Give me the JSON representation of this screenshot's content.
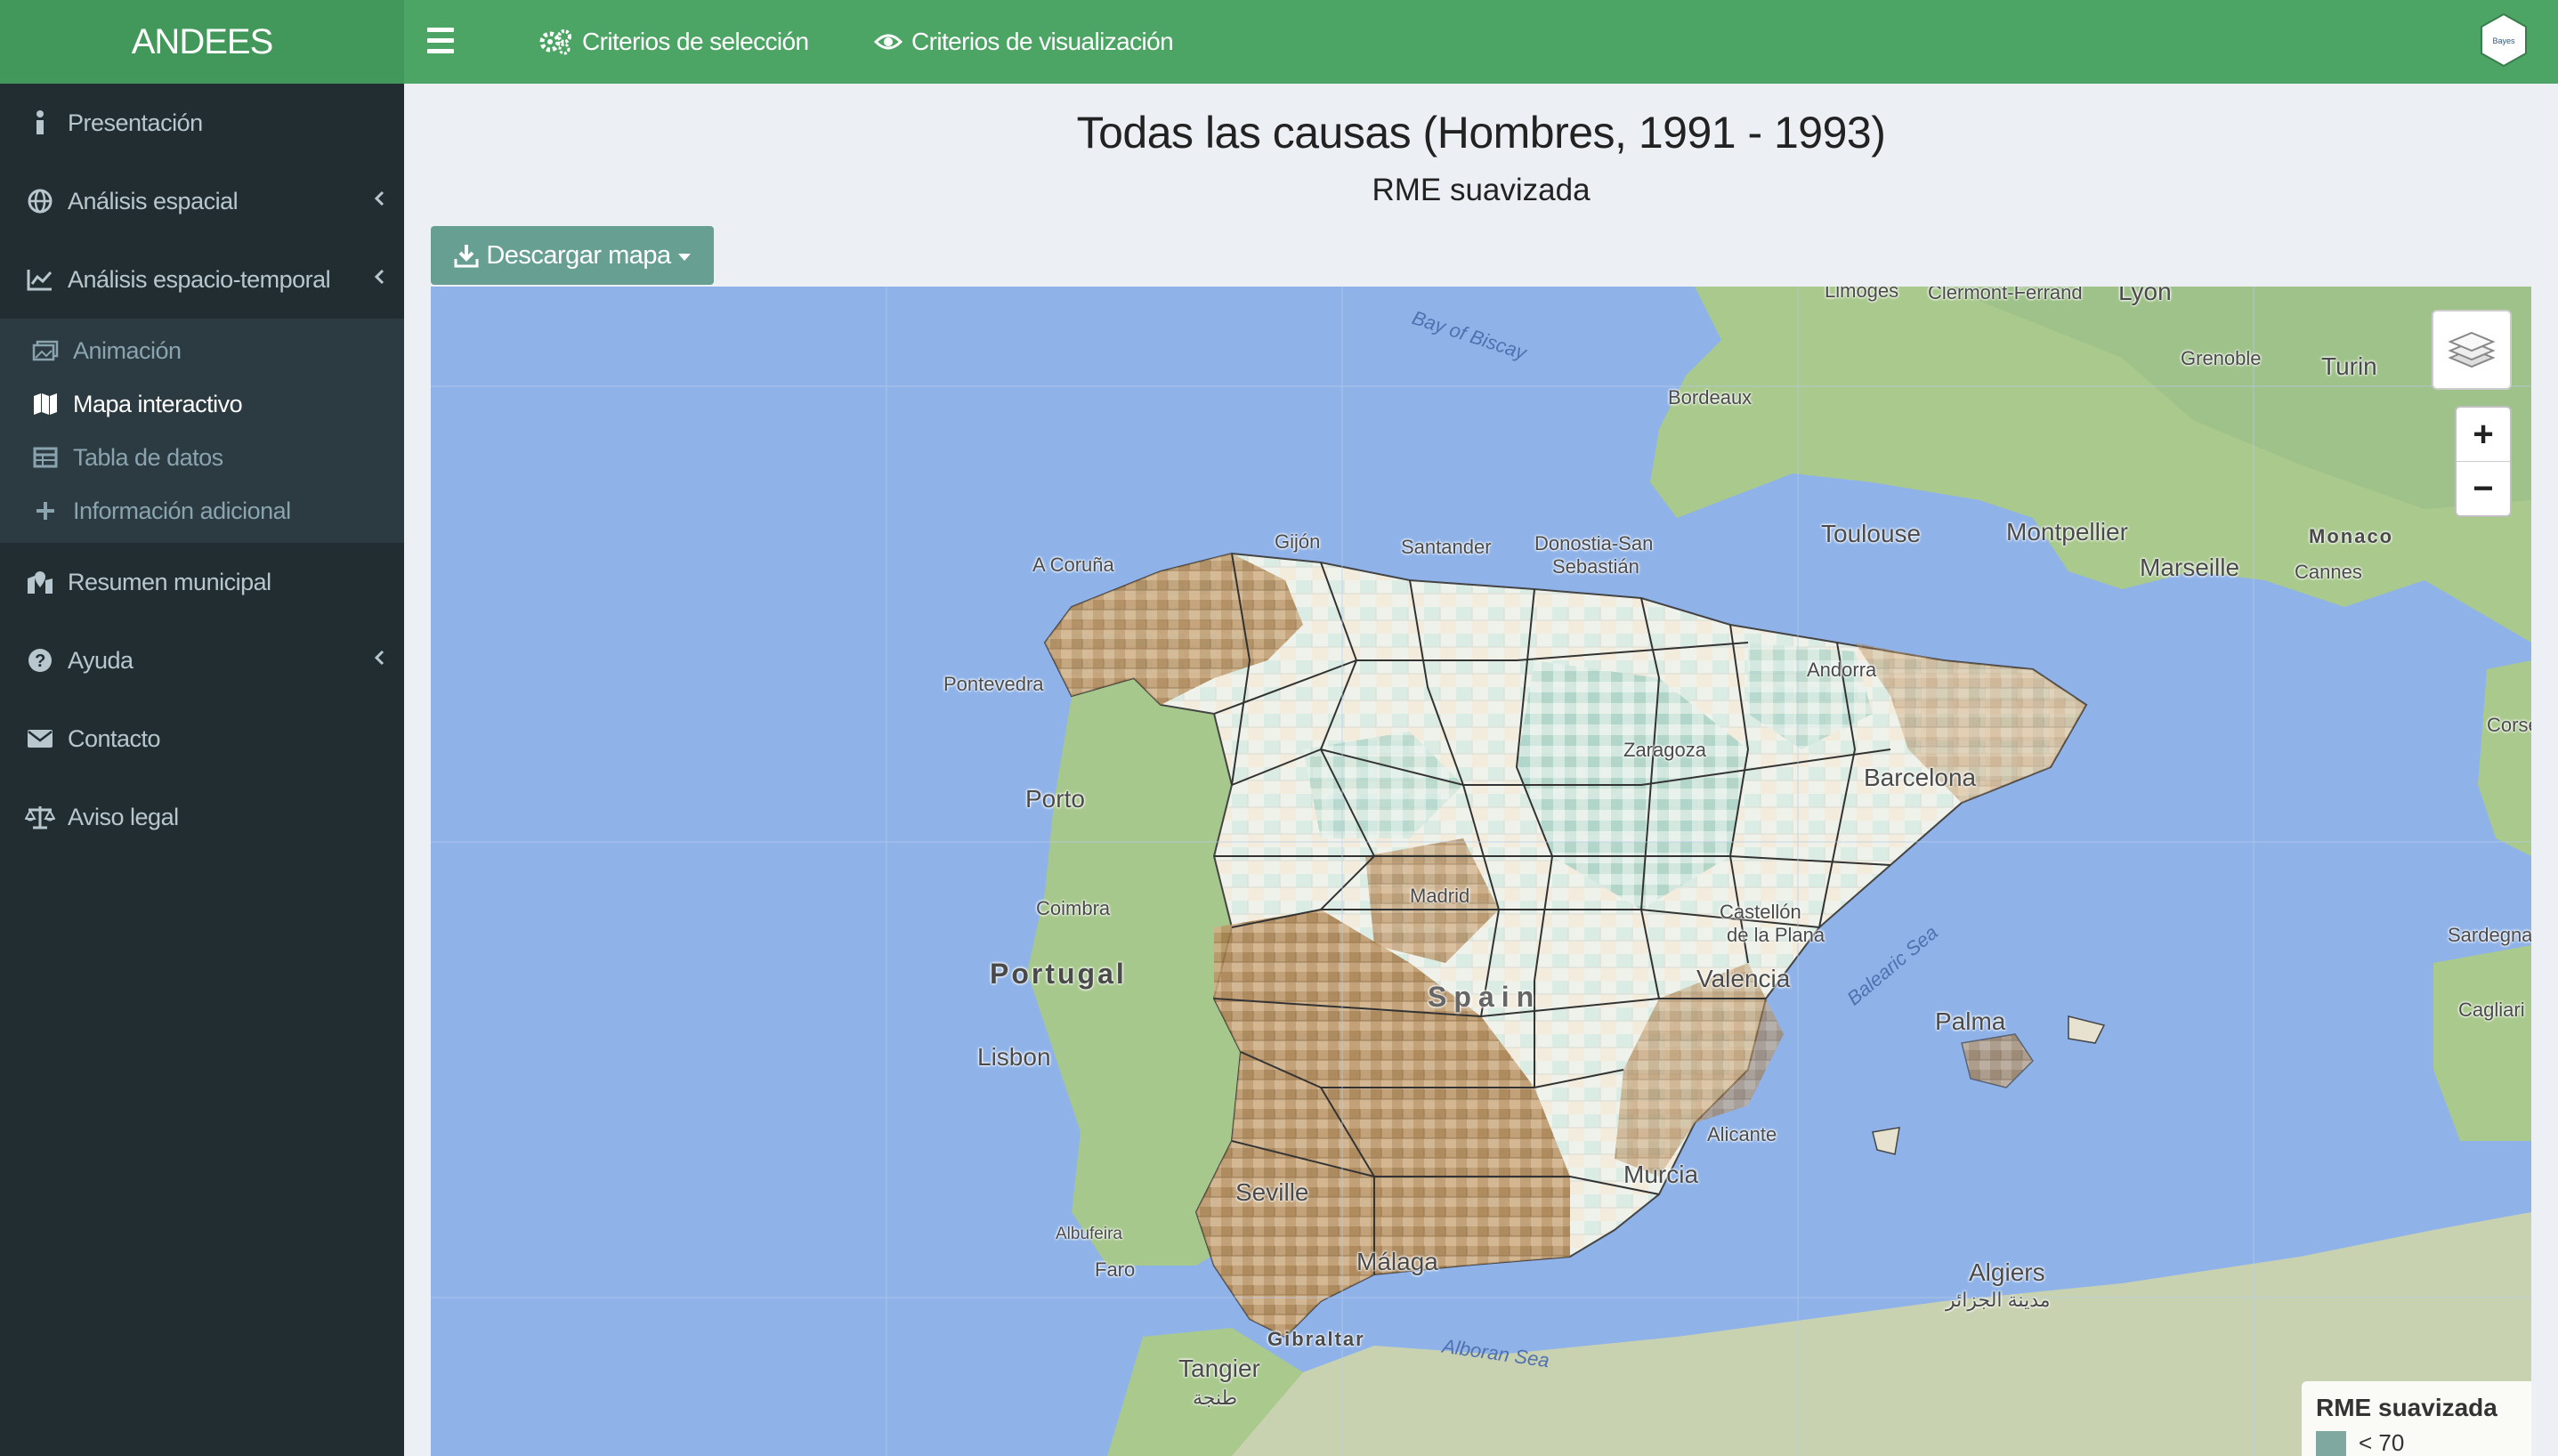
{
  "brand": "ANDEES",
  "topnav": {
    "selection": "Criterios de selección",
    "visualization": "Criterios de visualización"
  },
  "sidebar": {
    "items": [
      {
        "label": "Presentación"
      },
      {
        "label": "Análisis espacial"
      },
      {
        "label": "Análisis espacio-temporal"
      },
      {
        "label": "Resumen municipal"
      },
      {
        "label": "Ayuda"
      },
      {
        "label": "Contacto"
      },
      {
        "label": "Aviso legal"
      }
    ],
    "submenu": [
      {
        "label": "Animación"
      },
      {
        "label": "Mapa interactivo"
      },
      {
        "label": "Tabla de datos"
      },
      {
        "label": "Información adicional"
      }
    ]
  },
  "main": {
    "title": "Todas las causas (Hombres, 1991 - 1993)",
    "subtitle": "RME suavizada",
    "download_label": "Descargar mapa"
  },
  "map": {
    "labels": {
      "bay": "Bay of Biscay",
      "bordeaux": "Bordeaux",
      "toulouse": "Toulouse",
      "montpellier": "Montpellier",
      "marseille": "Marseille",
      "monaco": "Monaco",
      "cannes": "Cannes",
      "grenoble": "Grenoble",
      "turin": "Turin",
      "lyon": "Lyon",
      "limoges": "Limoges",
      "clermont": "Clermont-Ferrand",
      "gijon": "Gijón",
      "santander": "Santander",
      "donostia1": "Donostia-San",
      "donostia2": "Sebastián",
      "acoruna": "A Coruña",
      "pontevedra": "Pontevedra",
      "porto": "Porto",
      "coimbra": "Coimbra",
      "portugal": "Portugal",
      "lisbon": "Lisbon",
      "spain": "Spain",
      "albufeira": "Albufeira",
      "faro": "Faro",
      "tangier": "Tangier",
      "tangier_ar": "طنجة",
      "gibraltar": "Gibraltar",
      "alboran": "Alboran Sea",
      "algiers": "Algiers",
      "algiers_ar": "مدينة الجزائر",
      "palma": "Palma",
      "balearic": "Balearic Sea",
      "corse": "Corse",
      "sardegna": "Sardegna",
      "cagliari": "Cagliari",
      "valencia": "Valencia",
      "barcelona": "Barcelona",
      "zaragoza": "Zaragoza",
      "andorra": "Andorra",
      "murcia": "Murcia",
      "alicante": "Alicante",
      "seville": "Seville",
      "malaga": "Málaga",
      "madrid": "Madrid",
      "castellon1": "Castellón",
      "castellon2": "de la Plana"
    },
    "legend": {
      "title": "RME suavizada",
      "first_label": "< 70",
      "first_color": "#7fa9a0"
    }
  },
  "colors": {
    "topbar": "#4ca564",
    "sidebar": "#222d32",
    "button": "#67a093",
    "sea": "#8fb3e9"
  }
}
